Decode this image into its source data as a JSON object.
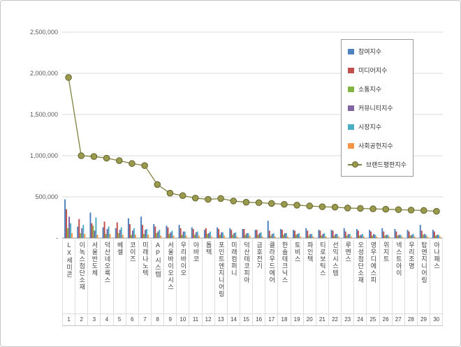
{
  "chart_data": {
    "type": "bar+line",
    "title": "",
    "xlabel": "",
    "ylabel": "",
    "ylim": [
      0,
      2500000
    ],
    "grid": true,
    "legend_position": "top-right",
    "y_ticks": [
      "-",
      "500,000",
      "1,000,000",
      "1,500,000",
      "2,000,000",
      "2,500,000"
    ],
    "y_tick_values": [
      0,
      500000,
      1000000,
      1500000,
      2000000,
      2500000
    ],
    "ranks": [
      1,
      2,
      3,
      4,
      5,
      6,
      7,
      8,
      9,
      10,
      11,
      12,
      13,
      14,
      15,
      16,
      17,
      18,
      19,
      20,
      21,
      22,
      23,
      24,
      25,
      26,
      27,
      28,
      29,
      30
    ],
    "categories": [
      "LX세미콘",
      "이녹스첨단소재",
      "서울반도체",
      "덕산네오룩스",
      "베셀",
      "코이즈",
      "미래나노텍",
      "AP시스템",
      "서울바이오시스",
      "우리바이오",
      "아바코",
      "톱텍",
      "포인트엔지니어링",
      "미래컴퍼니",
      "덕산테코피아",
      "금호전기",
      "클라우드에어",
      "한솔테크닉스",
      "토비스",
      "파인텍",
      "티로보틱스",
      "선익시스템",
      "루멘스",
      "오성첨단소재",
      "영우디에스피",
      "위지트",
      "넥스트아이",
      "우리조명",
      "탑엔지니어링",
      "아나패스"
    ],
    "series": [
      {
        "name": "참여지수",
        "color": "#4F81BD",
        "values": [
          470000,
          140000,
          310000,
          130000,
          120000,
          240000,
          260000,
          170000,
          150000,
          160000,
          130000,
          100000,
          130000,
          120000,
          110000,
          100000,
          210000,
          110000,
          100000,
          120000,
          100000,
          100000,
          120000,
          110000,
          100000,
          120000,
          110000,
          100000,
          160000,
          100000
        ]
      },
      {
        "name": "미디어지수",
        "color": "#C0504D",
        "values": [
          350000,
          230000,
          180000,
          200000,
          190000,
          170000,
          160000,
          140000,
          130000,
          120000,
          110000,
          120000,
          110000,
          100000,
          110000,
          100000,
          90000,
          100000,
          90000,
          90000,
          90000,
          90000,
          80000,
          90000,
          80000,
          80000,
          80000,
          80000,
          90000,
          80000
        ]
      },
      {
        "name": "소통지수",
        "color": "#84B441",
        "values": [
          120000,
          60000,
          150000,
          50000,
          60000,
          40000,
          50000,
          60000,
          50000,
          40000,
          40000,
          50000,
          40000,
          40000,
          40000,
          40000,
          30000,
          40000,
          40000,
          30000,
          30000,
          30000,
          30000,
          30000,
          30000,
          30000,
          30000,
          30000,
          40000,
          30000
        ]
      },
      {
        "name": "커뮤니티지수",
        "color": "#8064A2",
        "values": [
          260000,
          120000,
          90000,
          110000,
          100000,
          90000,
          100000,
          80000,
          70000,
          80000,
          70000,
          60000,
          70000,
          60000,
          60000,
          60000,
          50000,
          60000,
          50000,
          50000,
          50000,
          50000,
          50000,
          40000,
          50000,
          40000,
          40000,
          40000,
          50000,
          40000
        ]
      },
      {
        "name": "시장지수",
        "color": "#4BACC6",
        "values": [
          180000,
          160000,
          250000,
          140000,
          130000,
          120000,
          110000,
          100000,
          90000,
          80000,
          80000,
          80000,
          70000,
          70000,
          60000,
          70000,
          60000,
          60000,
          60000,
          50000,
          60000,
          50000,
          50000,
          50000,
          40000,
          40000,
          40000,
          50000,
          40000,
          40000
        ]
      },
      {
        "name": "사회공헌지수",
        "color": "#F79646",
        "values": [
          60000,
          50000,
          40000,
          50000,
          40000,
          40000,
          40000,
          30000,
          30000,
          30000,
          30000,
          20000,
          30000,
          20000,
          30000,
          20000,
          20000,
          20000,
          20000,
          20000,
          20000,
          20000,
          20000,
          20000,
          20000,
          20000,
          20000,
          20000,
          20000,
          20000
        ]
      }
    ],
    "line_series": {
      "name": "브랜드평판지수",
      "color": "#7F7F3F",
      "marker_fill": "#9A9A4D",
      "marker_stroke": "#62622F",
      "values": [
        1950000,
        1000000,
        990000,
        970000,
        940000,
        905000,
        880000,
        650000,
        545000,
        515000,
        485000,
        470000,
        480000,
        450000,
        435000,
        430000,
        420000,
        410000,
        400000,
        390000,
        380000,
        375000,
        365000,
        360000,
        355000,
        350000,
        345000,
        340000,
        335000,
        325000
      ]
    }
  },
  "colors": {
    "grid": "#d9d9d9",
    "axis_line": "#9a9a9a",
    "tick_text": "#595959"
  }
}
